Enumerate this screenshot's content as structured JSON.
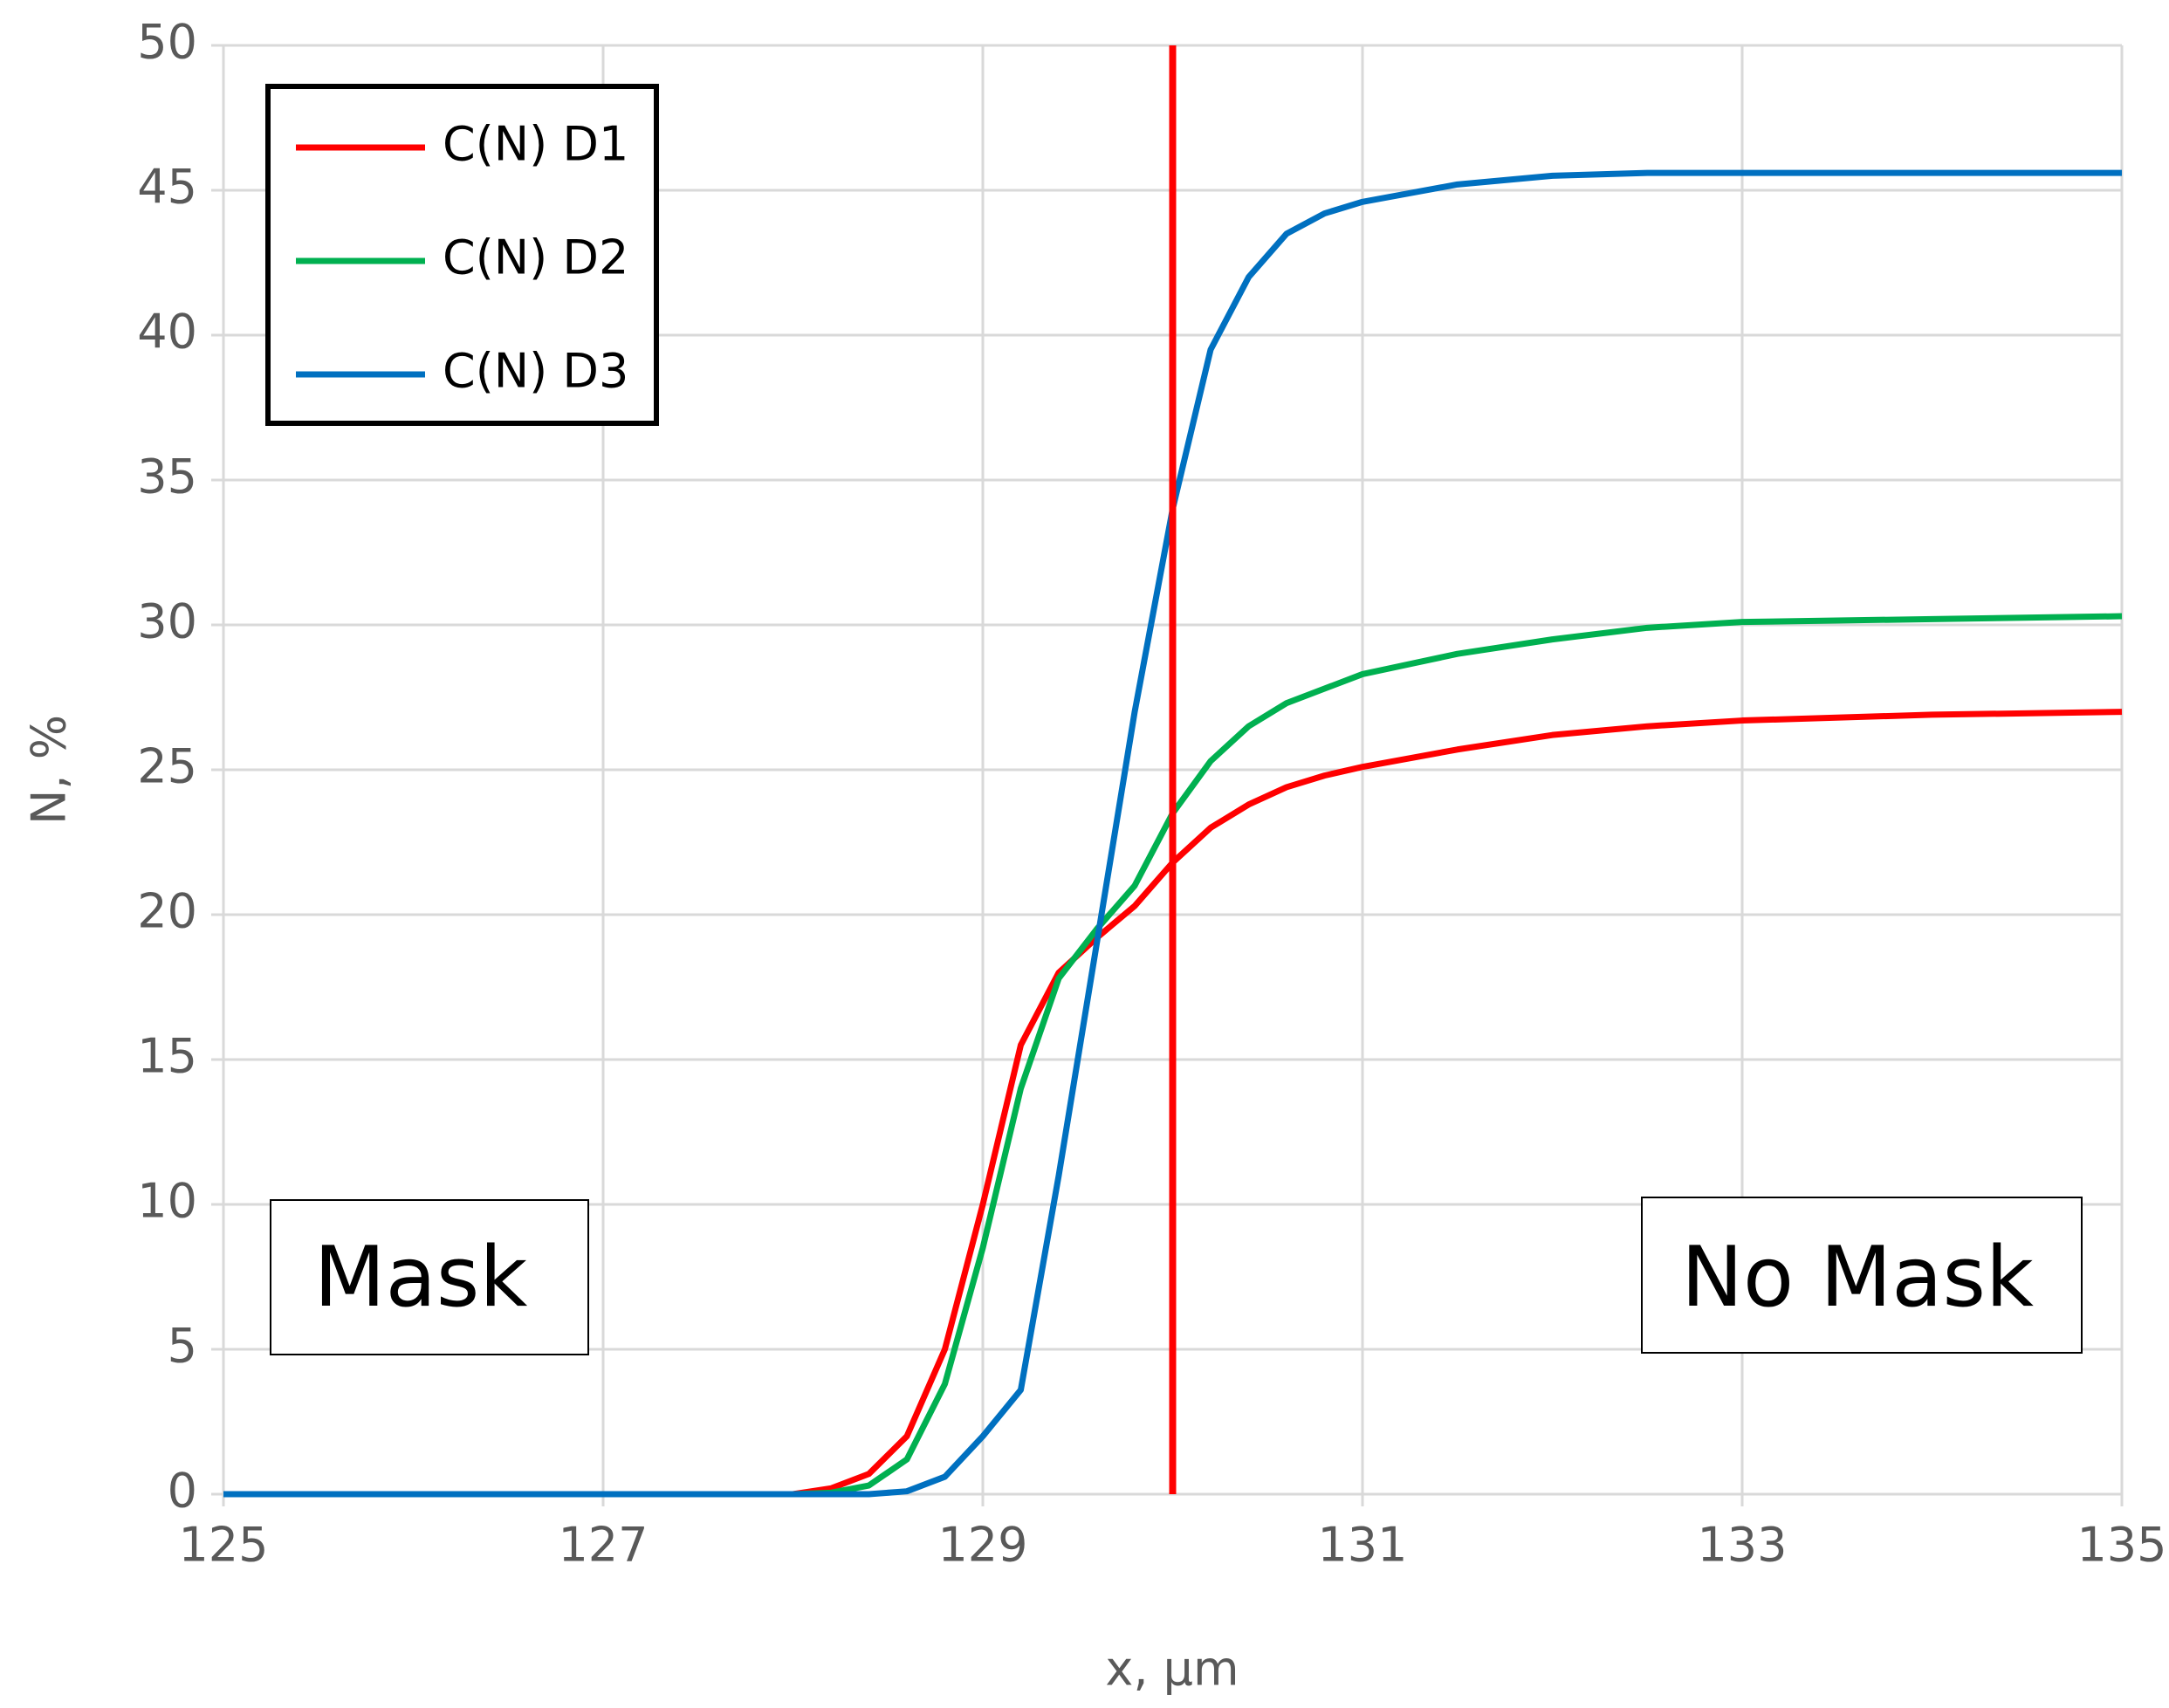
{
  "chart_data": {
    "type": "line",
    "x_label": "x, μm",
    "y_label": "N, %",
    "x": [
      125,
      127,
      128,
      128.2,
      128.4,
      128.6,
      128.8,
      129,
      129.2,
      129.4,
      129.6,
      129.8,
      130,
      130.2,
      130.4,
      130.6,
      130.8,
      131,
      131.5,
      132,
      132.5,
      133,
      134,
      135
    ],
    "series": [
      {
        "name": "C(N) D1",
        "color": "#ff0000",
        "values": [
          0,
          0,
          0,
          0.2,
          0.7,
          2,
          5,
          10,
          15.5,
          18,
          19.2,
          20.3,
          21.8,
          23,
          23.8,
          24.4,
          24.8,
          25.1,
          25.7,
          26.2,
          26.5,
          26.7,
          26.9,
          27
        ]
      },
      {
        "name": "C(N) D2",
        "color": "#00b050",
        "values": [
          0,
          0,
          0,
          0.05,
          0.3,
          1.2,
          3.8,
          8.5,
          14,
          17.8,
          19.5,
          21,
          23.5,
          25.3,
          26.5,
          27.3,
          27.8,
          28.3,
          29,
          29.5,
          29.9,
          30.1,
          30.2,
          30.3
        ]
      },
      {
        "name": "C(N) D3",
        "color": "#0070c0",
        "values": [
          0,
          0,
          0,
          0,
          0,
          0.1,
          0.6,
          2,
          3.6,
          11,
          19,
          27,
          34,
          39.5,
          42,
          43.5,
          44.2,
          44.6,
          45.2,
          45.5,
          45.6,
          45.6,
          45.6,
          45.6
        ]
      }
    ],
    "xlim": [
      125,
      135
    ],
    "xticks": [
      125,
      127,
      129,
      131,
      133,
      135
    ],
    "ylim": [
      0,
      50
    ],
    "yticks": [
      0,
      5,
      10,
      15,
      20,
      25,
      30,
      35,
      40,
      45,
      50
    ],
    "grid": true,
    "legend": "top-left",
    "vline": {
      "x": 130,
      "color": "#ff0000"
    },
    "annotations": [
      "Mask",
      "No Mask"
    ]
  }
}
